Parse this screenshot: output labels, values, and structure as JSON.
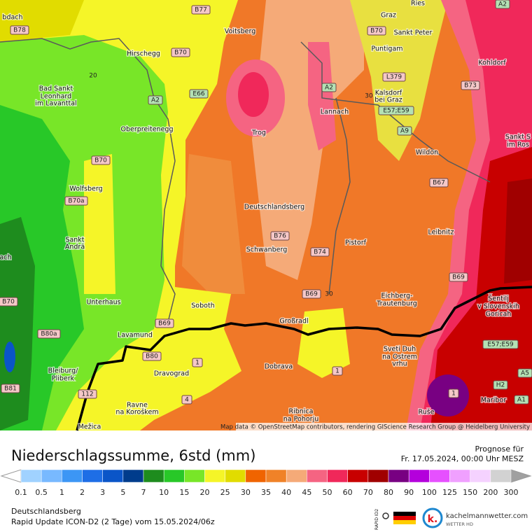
{
  "map": {
    "places": [
      "bdach",
      "Voitsberg",
      "Graz",
      "Sankt Peter",
      "Puntigam",
      "Hirschegg",
      "Kohldorf",
      "Bad Sankt",
      "Leonhard",
      "im Lavanttal",
      "Lannach",
      "Kalsdorf",
      "bei Graz",
      "Trog",
      "Oberpreitenegg",
      "Wildon",
      "Sankt S",
      "im Ros",
      "Wolfsberg",
      "Deutschlandsberg",
      "Leibnitz",
      "Sankt",
      "Andrä",
      "ach",
      "Schwanberg",
      "Pistorf",
      "Unterhaus",
      "Soboth",
      "Eichberg-",
      "Trautenburg",
      "Šentilj",
      "v Slovenskih",
      "Goricah",
      "Großradl",
      "Lavamund",
      "Sveti Duh",
      "na Ostrem",
      "vrhu",
      "Bleiburg/",
      "Pliberk",
      "Dobrava",
      "Dravograd",
      "Ravne",
      "na Koroškem",
      "Ribnica",
      "na Pohorju",
      "Ruše",
      "Maribor",
      "Mežica",
      "Ries"
    ],
    "roads": [
      "B77",
      "B78",
      "B70",
      "B70",
      "A2",
      "L379",
      "A2",
      "E66",
      "A2",
      "B73",
      "E57;E59",
      "A9",
      "B70",
      "B67",
      "B70a",
      "B76",
      "B74",
      "B69",
      "B69",
      "B69",
      "B80a",
      "B70",
      "E57;E59",
      "B80",
      "1",
      "1",
      "A5",
      "H2",
      "1",
      "B81",
      "112",
      "4",
      "A1"
    ],
    "contours": [
      20,
      30,
      30
    ],
    "attribution": "Map data © OpenStreetMap contributors, rendering GIScience Research Group @ Heidelberg University"
  },
  "header": {
    "title": "Niederschlagssumme, 6std (mm)",
    "forecast_label": "Prognose für",
    "forecast_time": "Fr. 17.05.2024, 00:00 Uhr MESZ"
  },
  "legend": {
    "ticks": [
      0.1,
      0.5,
      1,
      2,
      3,
      5,
      7,
      10,
      15,
      20,
      25,
      30,
      35,
      40,
      45,
      50,
      60,
      70,
      80,
      90,
      100,
      125,
      150,
      200,
      300
    ],
    "colors": [
      "#a0d2ff",
      "#78b9ff",
      "#3c96f5",
      "#1e6ee6",
      "#0a55c8",
      "#003c8c",
      "#1e8c1e",
      "#28c828",
      "#78e628",
      "#f5f528",
      "#e1dc00",
      "#f06400",
      "#f08228",
      "#f5aa78",
      "#f56482",
      "#f0285a",
      "#c80000",
      "#a00000",
      "#780082",
      "#b400dc",
      "#e650ff",
      "#f0a0ff",
      "#f5d2ff",
      "#d2d2d2"
    ]
  },
  "footer": {
    "location": "Deutschlandsberg",
    "model": "Rapid Update ICON-D2 (2 Tage) vom 15.05.2024/06z",
    "badge": "RAPID ID2",
    "brand": "kachelmannwetter.com",
    "brand_sub": "WETTER HD"
  }
}
